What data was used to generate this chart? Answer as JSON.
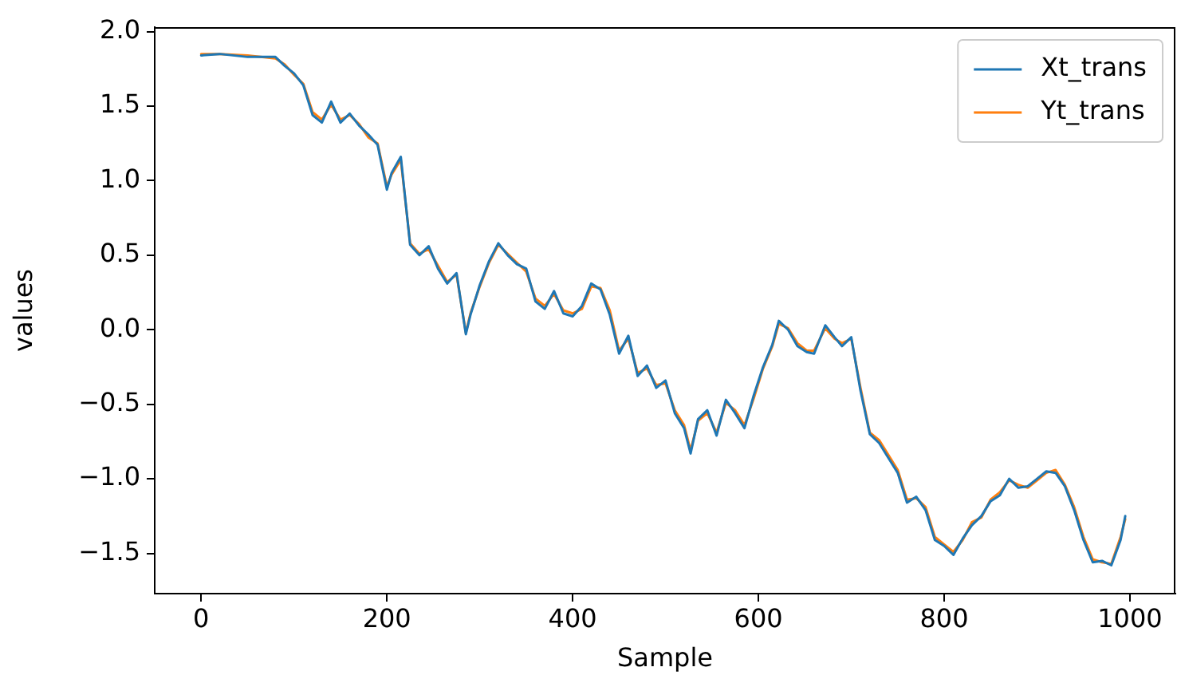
{
  "chart_data": {
    "type": "line",
    "xlabel": "Sample",
    "ylabel": "values",
    "xlim": [
      -50,
      1049
    ],
    "ylim": [
      -1.77,
      2.03
    ],
    "xticks": [
      0,
      200,
      400,
      600,
      800,
      1000
    ],
    "yticks": [
      {
        "value": -1.5,
        "label": "−1.5"
      },
      {
        "value": -1.0,
        "label": "−1.0"
      },
      {
        "value": -0.5,
        "label": "−0.5"
      },
      {
        "value": 0,
        "label": "0.0"
      },
      {
        "value": 0.5,
        "label": "0.5"
      },
      {
        "value": 1.0,
        "label": "1.0"
      },
      {
        "value": 1.5,
        "label": "1.5"
      },
      {
        "value": 2.0,
        "label": "2.0"
      }
    ],
    "grid": false,
    "legend": "top right",
    "marker": "none",
    "line_style": "solid",
    "x": [
      0,
      20,
      50,
      80,
      90,
      100,
      110,
      120,
      130,
      140,
      150,
      160,
      170,
      180,
      190,
      200,
      205,
      215,
      225,
      235,
      245,
      255,
      265,
      275,
      285,
      290,
      300,
      310,
      320,
      330,
      340,
      350,
      360,
      370,
      380,
      390,
      400,
      410,
      420,
      430,
      440,
      450,
      460,
      470,
      480,
      490,
      500,
      510,
      520,
      527,
      535,
      545,
      555,
      565,
      575,
      585,
      595,
      605,
      615,
      622,
      632,
      642,
      652,
      660,
      672,
      682,
      690,
      700,
      710,
      720,
      730,
      740,
      750,
      760,
      770,
      780,
      790,
      800,
      810,
      820,
      830,
      840,
      850,
      860,
      870,
      880,
      890,
      900,
      910,
      920,
      930,
      940,
      950,
      960,
      970,
      980,
      990,
      995
    ],
    "series": [
      {
        "name": "Xt_trans",
        "color": "#1f77b4",
        "values": [
          1.84,
          1.85,
          1.83,
          1.83,
          1.77,
          1.72,
          1.64,
          1.44,
          1.39,
          1.53,
          1.39,
          1.45,
          1.37,
          1.31,
          1.24,
          0.94,
          1.05,
          1.16,
          0.57,
          0.5,
          0.56,
          0.41,
          0.31,
          0.38,
          -0.03,
          0.1,
          0.3,
          0.46,
          0.58,
          0.5,
          0.44,
          0.41,
          0.19,
          0.14,
          0.26,
          0.11,
          0.09,
          0.16,
          0.31,
          0.27,
          0.1,
          -0.16,
          -0.04,
          -0.31,
          -0.24,
          -0.39,
          -0.34,
          -0.56,
          -0.66,
          -0.83,
          -0.6,
          -0.54,
          -0.71,
          -0.47,
          -0.56,
          -0.66,
          -0.44,
          -0.25,
          -0.1,
          0.06,
          0.0,
          -0.11,
          -0.15,
          -0.16,
          0.03,
          -0.05,
          -0.11,
          -0.05,
          -0.41,
          -0.7,
          -0.76,
          -0.86,
          -0.96,
          -1.16,
          -1.12,
          -1.21,
          -1.41,
          -1.45,
          -1.51,
          -1.4,
          -1.31,
          -1.25,
          -1.15,
          -1.11,
          -1.0,
          -1.06,
          -1.05,
          -1.0,
          -0.95,
          -0.96,
          -1.05,
          -1.21,
          -1.41,
          -1.56,
          -1.55,
          -1.58,
          -1.41,
          -1.25
        ]
      },
      {
        "name": "Yt_trans",
        "color": "#ff7f0e",
        "values": [
          1.85,
          1.85,
          1.84,
          1.82,
          1.78,
          1.71,
          1.65,
          1.46,
          1.41,
          1.51,
          1.41,
          1.44,
          1.38,
          1.29,
          1.25,
          0.96,
          1.04,
          1.14,
          0.58,
          0.51,
          0.54,
          0.43,
          0.32,
          0.37,
          -0.02,
          0.11,
          0.29,
          0.45,
          0.57,
          0.51,
          0.45,
          0.39,
          0.21,
          0.16,
          0.24,
          0.13,
          0.11,
          0.14,
          0.29,
          0.28,
          0.13,
          -0.14,
          -0.06,
          -0.29,
          -0.26,
          -0.37,
          -0.36,
          -0.54,
          -0.64,
          -0.81,
          -0.61,
          -0.56,
          -0.69,
          -0.49,
          -0.54,
          -0.64,
          -0.46,
          -0.26,
          -0.11,
          0.04,
          0.01,
          -0.09,
          -0.14,
          -0.14,
          0.01,
          -0.06,
          -0.09,
          -0.06,
          -0.39,
          -0.69,
          -0.74,
          -0.84,
          -0.94,
          -1.14,
          -1.13,
          -1.19,
          -1.39,
          -1.44,
          -1.49,
          -1.41,
          -1.29,
          -1.26,
          -1.14,
          -1.09,
          -1.01,
          -1.04,
          -1.06,
          -1.01,
          -0.96,
          -0.94,
          -1.04,
          -1.19,
          -1.39,
          -1.54,
          -1.56,
          -1.57,
          -1.39,
          -1.27
        ]
      }
    ]
  }
}
